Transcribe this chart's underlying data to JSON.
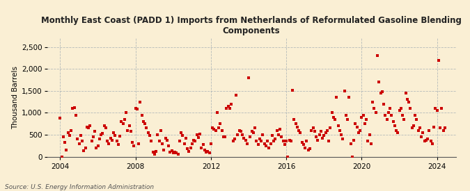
{
  "title": "Monthly East Coast (PADD 1) Imports from Netherlands of Reformulated Gasoline Blending\nComponents",
  "ylabel": "Thousand Barrels",
  "source": "Source: U.S. Energy Information Administration",
  "background_color": "#faefd4",
  "marker_color": "#cc0000",
  "grid_color": "#8899aa",
  "xlim_left": 2003.3,
  "xlim_right": 2025.0,
  "ylim_bottom": 0,
  "ylim_top": 2700,
  "yticks": [
    0,
    500,
    1000,
    1500,
    2000,
    2500
  ],
  "xticks": [
    2004,
    2008,
    2012,
    2016,
    2020,
    2024
  ],
  "data": [
    [
      2004.0,
      878
    ],
    [
      2004.083,
      0
    ],
    [
      2004.167,
      450
    ],
    [
      2004.25,
      320
    ],
    [
      2004.333,
      150
    ],
    [
      2004.417,
      550
    ],
    [
      2004.5,
      480
    ],
    [
      2004.583,
      600
    ],
    [
      2004.667,
      1100
    ],
    [
      2004.75,
      1120
    ],
    [
      2004.833,
      950
    ],
    [
      2004.917,
      400
    ],
    [
      2005.0,
      300
    ],
    [
      2005.083,
      480
    ],
    [
      2005.167,
      350
    ],
    [
      2005.25,
      130
    ],
    [
      2005.333,
      200
    ],
    [
      2005.417,
      670
    ],
    [
      2005.5,
      650
    ],
    [
      2005.583,
      700
    ],
    [
      2005.667,
      350
    ],
    [
      2005.75,
      450
    ],
    [
      2005.833,
      580
    ],
    [
      2005.917,
      200
    ],
    [
      2006.0,
      250
    ],
    [
      2006.083,
      400
    ],
    [
      2006.167,
      500
    ],
    [
      2006.25,
      530
    ],
    [
      2006.333,
      700
    ],
    [
      2006.417,
      650
    ],
    [
      2006.5,
      350
    ],
    [
      2006.583,
      300
    ],
    [
      2006.667,
      420
    ],
    [
      2006.75,
      380
    ],
    [
      2006.833,
      550
    ],
    [
      2006.917,
      480
    ],
    [
      2007.0,
      350
    ],
    [
      2007.083,
      280
    ],
    [
      2007.167,
      470
    ],
    [
      2007.25,
      800
    ],
    [
      2007.333,
      750
    ],
    [
      2007.417,
      850
    ],
    [
      2007.5,
      1000
    ],
    [
      2007.583,
      600
    ],
    [
      2007.667,
      700
    ],
    [
      2007.75,
      580
    ],
    [
      2007.833,
      320
    ],
    [
      2007.917,
      250
    ],
    [
      2008.0,
      1100
    ],
    [
      2008.083,
      1080
    ],
    [
      2008.167,
      300
    ],
    [
      2008.25,
      1250
    ],
    [
      2008.333,
      950
    ],
    [
      2008.417,
      800
    ],
    [
      2008.5,
      750
    ],
    [
      2008.583,
      660
    ],
    [
      2008.667,
      550
    ],
    [
      2008.75,
      480
    ],
    [
      2008.833,
      350
    ],
    [
      2008.917,
      100
    ],
    [
      2009.0,
      50
    ],
    [
      2009.083,
      120
    ],
    [
      2009.167,
      500
    ],
    [
      2009.25,
      350
    ],
    [
      2009.333,
      600
    ],
    [
      2009.417,
      300
    ],
    [
      2009.5,
      150
    ],
    [
      2009.583,
      420
    ],
    [
      2009.667,
      380
    ],
    [
      2009.75,
      250
    ],
    [
      2009.833,
      100
    ],
    [
      2009.917,
      130
    ],
    [
      2010.0,
      80
    ],
    [
      2010.083,
      100
    ],
    [
      2010.167,
      80
    ],
    [
      2010.25,
      50
    ],
    [
      2010.333,
      350
    ],
    [
      2010.417,
      550
    ],
    [
      2010.5,
      480
    ],
    [
      2010.583,
      300
    ],
    [
      2010.667,
      420
    ],
    [
      2010.75,
      180
    ],
    [
      2010.833,
      120
    ],
    [
      2010.917,
      200
    ],
    [
      2011.0,
      300
    ],
    [
      2011.083,
      380
    ],
    [
      2011.167,
      350
    ],
    [
      2011.25,
      500
    ],
    [
      2011.333,
      430
    ],
    [
      2011.417,
      520
    ],
    [
      2011.5,
      200
    ],
    [
      2011.583,
      280
    ],
    [
      2011.667,
      150
    ],
    [
      2011.75,
      100
    ],
    [
      2011.833,
      120
    ],
    [
      2011.917,
      80
    ],
    [
      2012.0,
      300
    ],
    [
      2012.083,
      650
    ],
    [
      2012.167,
      620
    ],
    [
      2012.25,
      600
    ],
    [
      2012.333,
      1000
    ],
    [
      2012.417,
      650
    ],
    [
      2012.5,
      750
    ],
    [
      2012.583,
      600
    ],
    [
      2012.667,
      450
    ],
    [
      2012.75,
      450
    ],
    [
      2012.833,
      1100
    ],
    [
      2012.917,
      1150
    ],
    [
      2013.0,
      1100
    ],
    [
      2013.083,
      1200
    ],
    [
      2013.167,
      350
    ],
    [
      2013.25,
      400
    ],
    [
      2013.333,
      1400
    ],
    [
      2013.417,
      500
    ],
    [
      2013.5,
      600
    ],
    [
      2013.583,
      580
    ],
    [
      2013.667,
      500
    ],
    [
      2013.75,
      420
    ],
    [
      2013.833,
      380
    ],
    [
      2013.917,
      300
    ],
    [
      2014.0,
      1800
    ],
    [
      2014.083,
      450
    ],
    [
      2014.167,
      580
    ],
    [
      2014.25,
      550
    ],
    [
      2014.333,
      650
    ],
    [
      2014.417,
      350
    ],
    [
      2014.5,
      280
    ],
    [
      2014.583,
      400
    ],
    [
      2014.667,
      350
    ],
    [
      2014.75,
      500
    ],
    [
      2014.833,
      300
    ],
    [
      2014.917,
      250
    ],
    [
      2015.0,
      350
    ],
    [
      2015.083,
      200
    ],
    [
      2015.167,
      300
    ],
    [
      2015.25,
      480
    ],
    [
      2015.333,
      350
    ],
    [
      2015.417,
      400
    ],
    [
      2015.5,
      600
    ],
    [
      2015.583,
      500
    ],
    [
      2015.667,
      620
    ],
    [
      2015.75,
      450
    ],
    [
      2015.833,
      350
    ],
    [
      2015.917,
      280
    ],
    [
      2016.0,
      350
    ],
    [
      2016.083,
      0
    ],
    [
      2016.167,
      380
    ],
    [
      2016.25,
      350
    ],
    [
      2016.333,
      1520
    ],
    [
      2016.417,
      850
    ],
    [
      2016.5,
      750
    ],
    [
      2016.583,
      680
    ],
    [
      2016.667,
      600
    ],
    [
      2016.75,
      550
    ],
    [
      2016.833,
      320
    ],
    [
      2016.917,
      280
    ],
    [
      2017.0,
      200
    ],
    [
      2017.083,
      350
    ],
    [
      2017.167,
      150
    ],
    [
      2017.25,
      180
    ],
    [
      2017.333,
      600
    ],
    [
      2017.417,
      650
    ],
    [
      2017.5,
      580
    ],
    [
      2017.583,
      450
    ],
    [
      2017.667,
      380
    ],
    [
      2017.75,
      500
    ],
    [
      2017.833,
      580
    ],
    [
      2017.917,
      420
    ],
    [
      2018.0,
      480
    ],
    [
      2018.083,
      550
    ],
    [
      2018.167,
      600
    ],
    [
      2018.25,
      350
    ],
    [
      2018.333,
      650
    ],
    [
      2018.417,
      1000
    ],
    [
      2018.5,
      900
    ],
    [
      2018.583,
      850
    ],
    [
      2018.667,
      1350
    ],
    [
      2018.75,
      700
    ],
    [
      2018.833,
      600
    ],
    [
      2018.917,
      500
    ],
    [
      2019.0,
      400
    ],
    [
      2019.083,
      1500
    ],
    [
      2019.167,
      950
    ],
    [
      2019.25,
      850
    ],
    [
      2019.333,
      1350
    ],
    [
      2019.417,
      300
    ],
    [
      2019.5,
      0
    ],
    [
      2019.583,
      380
    ],
    [
      2019.667,
      750
    ],
    [
      2019.75,
      680
    ],
    [
      2019.833,
      550
    ],
    [
      2019.917,
      600
    ],
    [
      2020.0,
      900
    ],
    [
      2020.083,
      950
    ],
    [
      2020.167,
      750
    ],
    [
      2020.25,
      850
    ],
    [
      2020.333,
      350
    ],
    [
      2020.417,
      500
    ],
    [
      2020.5,
      300
    ],
    [
      2020.583,
      1250
    ],
    [
      2020.667,
      1100
    ],
    [
      2020.75,
      1000
    ],
    [
      2020.833,
      2300
    ],
    [
      2020.917,
      1700
    ],
    [
      2021.0,
      1450
    ],
    [
      2021.083,
      1480
    ],
    [
      2021.167,
      1200
    ],
    [
      2021.25,
      950
    ],
    [
      2021.333,
      850
    ],
    [
      2021.417,
      1000
    ],
    [
      2021.5,
      1100
    ],
    [
      2021.583,
      950
    ],
    [
      2021.667,
      800
    ],
    [
      2021.75,
      700
    ],
    [
      2021.833,
      600
    ],
    [
      2021.917,
      550
    ],
    [
      2022.0,
      1050
    ],
    [
      2022.083,
      1100
    ],
    [
      2022.167,
      950
    ],
    [
      2022.25,
      850
    ],
    [
      2022.333,
      1450
    ],
    [
      2022.417,
      1300
    ],
    [
      2022.5,
      1250
    ],
    [
      2022.583,
      1100
    ],
    [
      2022.667,
      650
    ],
    [
      2022.75,
      700
    ],
    [
      2022.833,
      950
    ],
    [
      2022.917,
      850
    ],
    [
      2023.0,
      600
    ],
    [
      2023.083,
      650
    ],
    [
      2023.167,
      450
    ],
    [
      2023.25,
      550
    ],
    [
      2023.333,
      350
    ],
    [
      2023.417,
      380
    ],
    [
      2023.5,
      400
    ],
    [
      2023.583,
      600
    ],
    [
      2023.667,
      350
    ],
    [
      2023.75,
      300
    ],
    [
      2023.833,
      680
    ],
    [
      2023.917,
      1100
    ],
    [
      2024.0,
      1050
    ],
    [
      2024.083,
      2200
    ],
    [
      2024.167,
      650
    ],
    [
      2024.25,
      1100
    ],
    [
      2024.333,
      600
    ],
    [
      2024.417,
      650
    ]
  ]
}
